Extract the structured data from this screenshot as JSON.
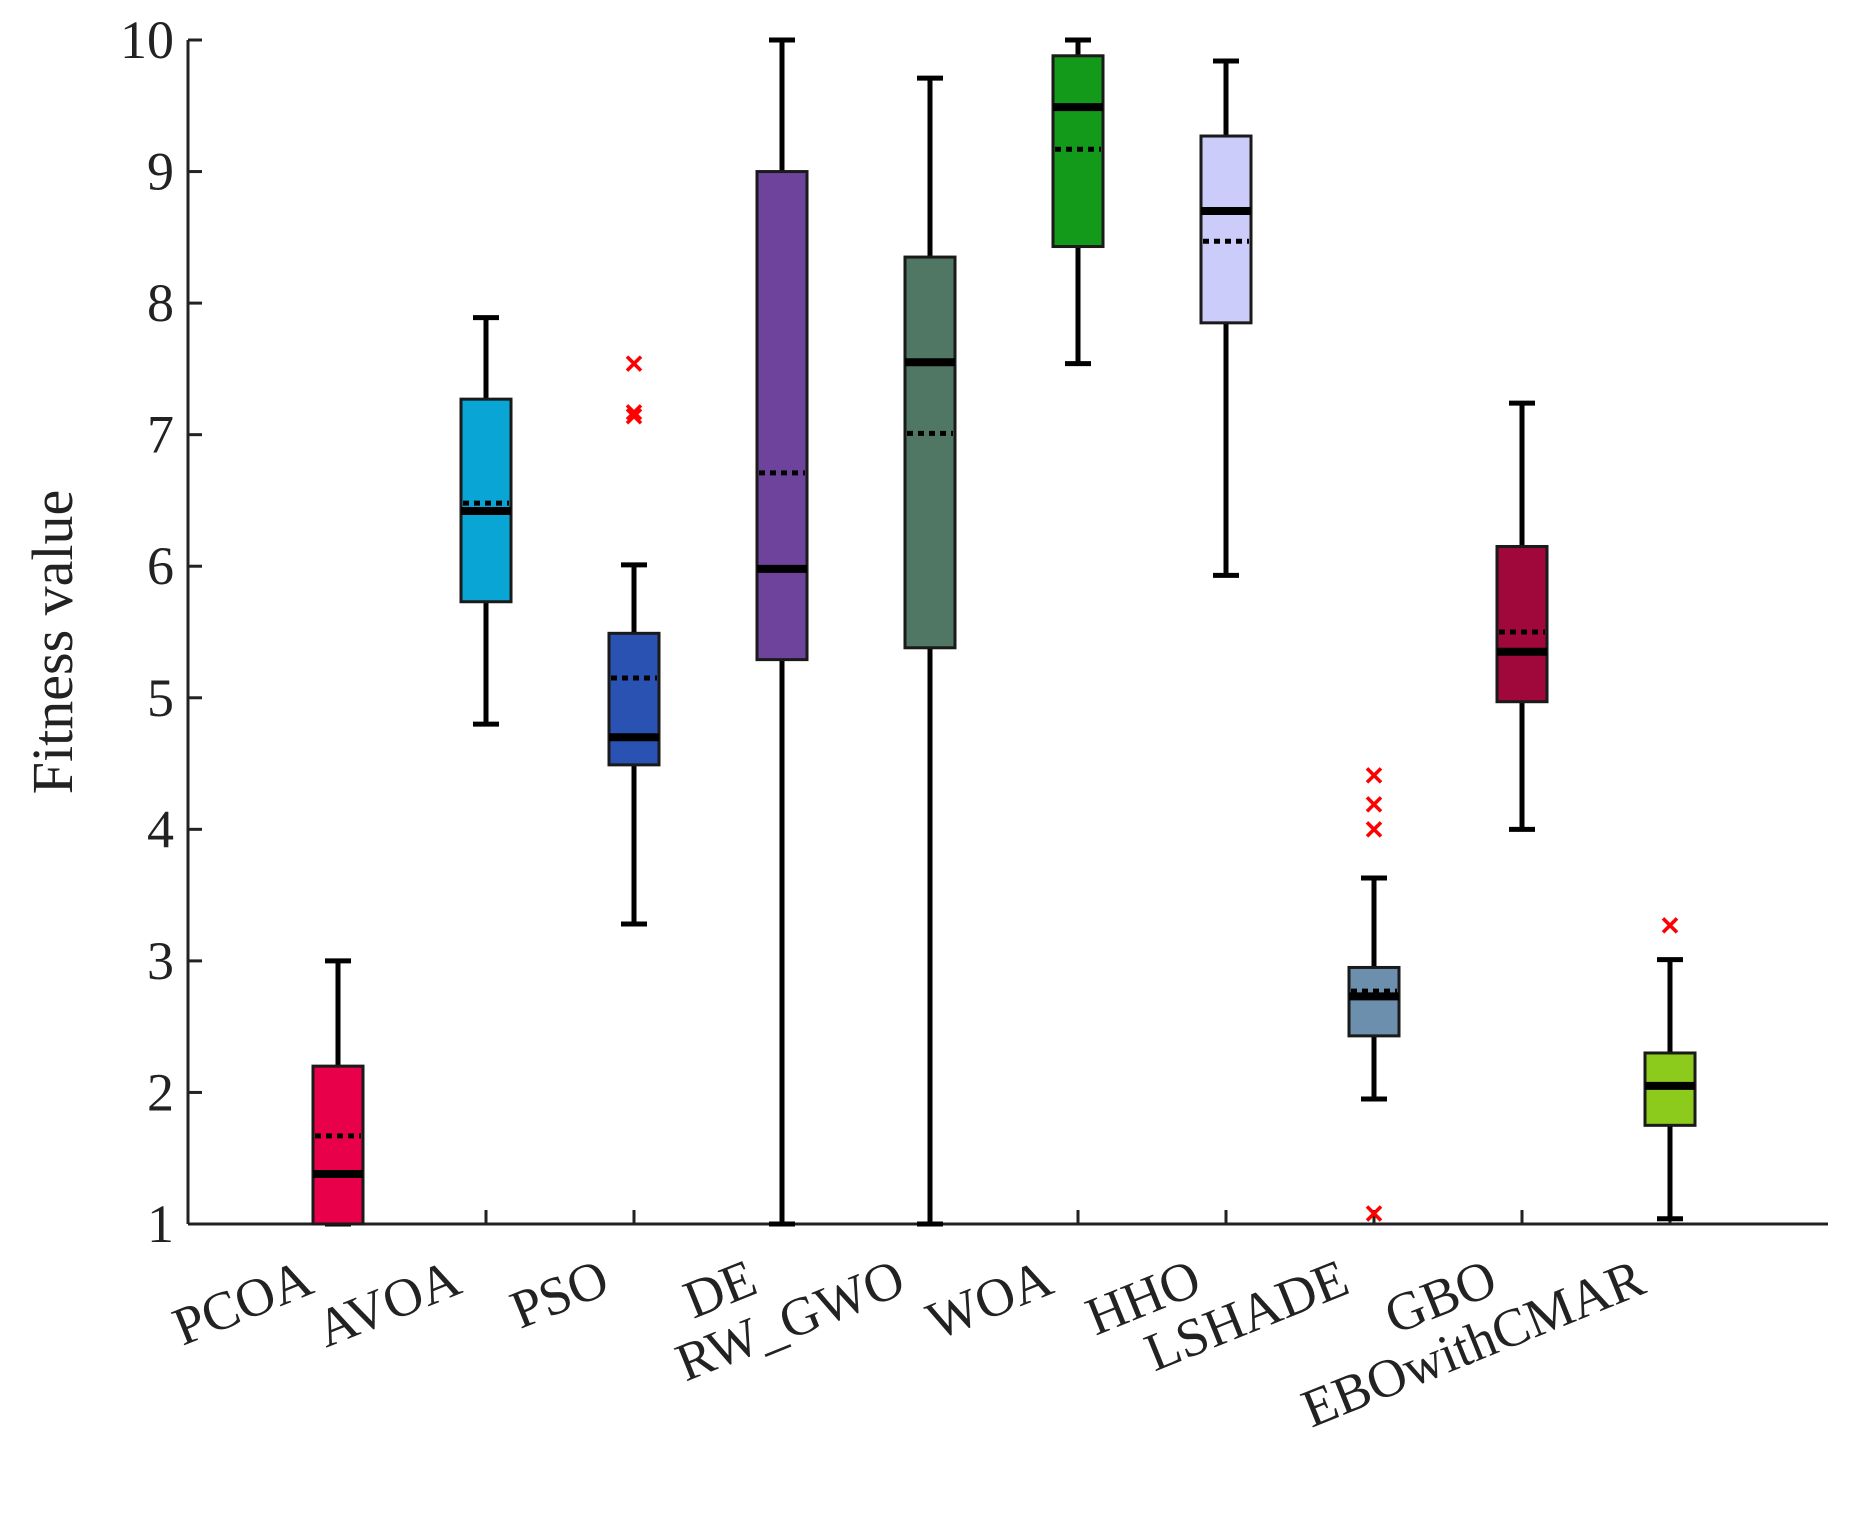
{
  "chart_data": {
    "type": "box",
    "ylabel": "Fitness value",
    "xlabel": "",
    "ylim": [
      1,
      10
    ],
    "yticks": [
      1,
      2,
      3,
      4,
      5,
      6,
      7,
      8,
      9,
      10
    ],
    "outlier_color": "#ff0000",
    "series": [
      {
        "name": "PCOA",
        "color": "#e8004a",
        "whisker_low": 1.0,
        "q1": 1.0,
        "median": 1.38,
        "mean": 1.67,
        "q3": 2.2,
        "whisker_high": 3.0,
        "outliers": []
      },
      {
        "name": "AVOA",
        "color": "#09a6d5",
        "whisker_low": 4.8,
        "q1": 5.73,
        "median": 6.42,
        "mean": 6.48,
        "q3": 7.27,
        "whisker_high": 7.89,
        "outliers": []
      },
      {
        "name": "PSO",
        "color": "#2a52b3",
        "whisker_low": 3.28,
        "q1": 4.49,
        "median": 4.7,
        "mean": 5.15,
        "q3": 5.49,
        "whisker_high": 6.01,
        "outliers": [
          7.54,
          7.17,
          7.14
        ]
      },
      {
        "name": "DE",
        "color": "#6e439b",
        "whisker_low": 1.0,
        "q1": 5.29,
        "median": 5.98,
        "mean": 6.71,
        "q3": 9.0,
        "whisker_high": 10.0,
        "outliers": []
      },
      {
        "name": "RW_GWO",
        "color": "#507764",
        "whisker_low": 1.0,
        "q1": 5.38,
        "median": 7.55,
        "mean": 7.01,
        "q3": 8.35,
        "whisker_high": 9.71,
        "outliers": []
      },
      {
        "name": "WOA",
        "color": "#149a1a",
        "whisker_low": 7.54,
        "q1": 8.43,
        "median": 9.49,
        "mean": 9.17,
        "q3": 9.88,
        "whisker_high": 10.0,
        "outliers": []
      },
      {
        "name": "HHO",
        "color": "#ccccfa",
        "whisker_low": 5.93,
        "q1": 7.85,
        "median": 8.7,
        "mean": 8.47,
        "q3": 9.27,
        "whisker_high": 9.84,
        "outliers": []
      },
      {
        "name": "LSHADE",
        "color": "#6b8fad",
        "whisker_low": 1.95,
        "q1": 2.43,
        "median": 2.73,
        "mean": 2.77,
        "q3": 2.95,
        "whisker_high": 3.63,
        "outliers": [
          4.41,
          4.19,
          4.0,
          1.08
        ]
      },
      {
        "name": "GBO",
        "color": "#a0073a",
        "whisker_low": 4.0,
        "q1": 4.97,
        "median": 5.35,
        "mean": 5.5,
        "q3": 6.15,
        "whisker_high": 7.24,
        "outliers": []
      },
      {
        "name": "EBOwithCMAR",
        "color": "#8ccb1c",
        "whisker_low": 1.04,
        "q1": 1.75,
        "median": 2.05,
        "mean": 2.05,
        "q3": 2.3,
        "whisker_high": 3.01,
        "outliers": [
          3.27
        ]
      }
    ]
  }
}
